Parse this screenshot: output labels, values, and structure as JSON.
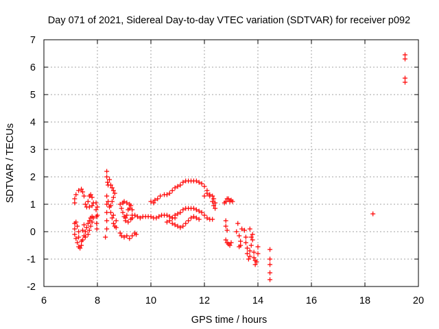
{
  "chart_data": {
    "type": "scatter",
    "title": "Day 071 of 2021, Sidereal Day-to-day VTEC variation (SDTVAR) for receiver p092",
    "xlabel": "GPS time / hours",
    "ylabel": "SDTVAR / TECUs",
    "xlim": [
      6,
      20
    ],
    "ylim": [
      -2,
      7
    ],
    "xticks": [
      "6",
      "8",
      "10",
      "12",
      "14",
      "16",
      "18",
      "20"
    ],
    "yticks": [
      "-2",
      "-1",
      "0",
      "1",
      "2",
      "3",
      "4",
      "5",
      "6",
      "7"
    ],
    "grid": true,
    "marker": "plus",
    "color": "#ff0000",
    "series": [
      {
        "name": "SDTVAR",
        "points": [
          [
            7.15,
            1.05
          ],
          [
            7.15,
            1.2
          ],
          [
            7.2,
            1.35
          ],
          [
            7.3,
            1.5
          ],
          [
            7.4,
            1.55
          ],
          [
            7.45,
            1.45
          ],
          [
            7.5,
            1.3
          ],
          [
            7.55,
            1.0
          ],
          [
            7.6,
            0.9
          ],
          [
            7.65,
            1.1
          ],
          [
            7.7,
            1.3
          ],
          [
            7.75,
            1.35
          ],
          [
            7.8,
            1.25
          ],
          [
            7.85,
            1.05
          ],
          [
            7.8,
            0.95
          ],
          [
            7.7,
            0.9
          ],
          [
            7.15,
            0.3
          ],
          [
            7.15,
            0.1
          ],
          [
            7.15,
            -0.1
          ],
          [
            7.2,
            -0.25
          ],
          [
            7.25,
            -0.4
          ],
          [
            7.3,
            -0.55
          ],
          [
            7.35,
            -0.6
          ],
          [
            7.4,
            -0.5
          ],
          [
            7.45,
            -0.3
          ],
          [
            7.5,
            -0.15
          ],
          [
            7.55,
            0.0
          ],
          [
            7.6,
            0.15
          ],
          [
            7.65,
            0.3
          ],
          [
            7.7,
            0.4
          ],
          [
            7.75,
            0.5
          ],
          [
            7.8,
            0.55
          ],
          [
            7.85,
            0.5
          ],
          [
            7.8,
            0.35
          ],
          [
            7.75,
            0.2
          ],
          [
            7.7,
            0.05
          ],
          [
            7.65,
            -0.1
          ],
          [
            7.55,
            -0.2
          ],
          [
            7.2,
            0.35
          ],
          [
            7.25,
            0.2
          ],
          [
            7.3,
            0.0
          ],
          [
            7.3,
            -0.2
          ],
          [
            7.4,
            -0.35
          ],
          [
            7.45,
            0.05
          ],
          [
            7.5,
            0.25
          ],
          [
            7.95,
            1.05
          ],
          [
            7.95,
            0.8
          ],
          [
            7.97,
            0.55
          ],
          [
            7.97,
            0.3
          ],
          [
            7.98,
            0.1
          ],
          [
            8.0,
            0.9
          ],
          [
            8.0,
            0.6
          ],
          [
            8.3,
            -0.2
          ],
          [
            8.35,
            0.1
          ],
          [
            8.35,
            0.4
          ],
          [
            8.35,
            0.7
          ],
          [
            8.35,
            1.0
          ],
          [
            8.35,
            1.3
          ],
          [
            8.35,
            2.0
          ],
          [
            8.35,
            2.2
          ],
          [
            8.38,
            1.8
          ],
          [
            8.4,
            1.7
          ],
          [
            8.45,
            1.9
          ],
          [
            8.5,
            1.7
          ],
          [
            8.55,
            1.6
          ],
          [
            8.6,
            1.5
          ],
          [
            8.65,
            1.4
          ],
          [
            8.6,
            1.25
          ],
          [
            8.55,
            1.1
          ],
          [
            8.5,
            0.95
          ],
          [
            8.4,
            1.1
          ],
          [
            8.45,
            0.9
          ],
          [
            8.5,
            0.7
          ],
          [
            8.55,
            0.5
          ],
          [
            8.6,
            0.3
          ],
          [
            8.65,
            0.2
          ],
          [
            8.7,
            0.15
          ],
          [
            8.6,
            0.6
          ],
          [
            8.7,
            0.4
          ],
          [
            8.85,
            1.0
          ],
          [
            8.9,
            0.85
          ],
          [
            8.95,
            0.7
          ],
          [
            9.0,
            0.55
          ],
          [
            9.05,
            0.4
          ],
          [
            9.1,
            0.6
          ],
          [
            9.15,
            0.8
          ],
          [
            9.2,
            1.0
          ],
          [
            9.25,
            0.95
          ],
          [
            9.3,
            0.8
          ],
          [
            9.3,
            0.6
          ],
          [
            9.25,
            0.45
          ],
          [
            9.15,
            0.35
          ],
          [
            9.05,
            0.5
          ],
          [
            8.95,
            1.05
          ],
          [
            9.0,
            1.1
          ],
          [
            9.1,
            1.05
          ],
          [
            9.2,
            0.85
          ],
          [
            9.3,
            0.5
          ],
          [
            8.85,
            -0.05
          ],
          [
            8.9,
            -0.15
          ],
          [
            9.0,
            -0.2
          ],
          [
            9.1,
            -0.15
          ],
          [
            9.2,
            -0.25
          ],
          [
            9.3,
            -0.15
          ],
          [
            9.4,
            -0.05
          ],
          [
            9.45,
            -0.1
          ],
          [
            9.4,
            0.6
          ],
          [
            9.5,
            0.55
          ],
          [
            9.6,
            0.5
          ],
          [
            9.7,
            0.55
          ],
          [
            9.8,
            0.55
          ],
          [
            9.9,
            0.55
          ],
          [
            10.0,
            0.55
          ],
          [
            10.1,
            0.5
          ],
          [
            10.2,
            0.5
          ],
          [
            10.3,
            0.55
          ],
          [
            10.4,
            0.6
          ],
          [
            10.5,
            0.6
          ],
          [
            10.6,
            0.6
          ],
          [
            10.7,
            0.55
          ],
          [
            10.8,
            0.5
          ],
          [
            10.9,
            0.5
          ],
          [
            10.0,
            1.1
          ],
          [
            10.1,
            1.05
          ],
          [
            10.15,
            1.15
          ],
          [
            10.25,
            1.2
          ],
          [
            10.35,
            1.3
          ],
          [
            10.5,
            1.35
          ],
          [
            10.6,
            1.35
          ],
          [
            10.7,
            1.4
          ],
          [
            10.8,
            1.5
          ],
          [
            10.9,
            1.6
          ],
          [
            11.0,
            1.65
          ],
          [
            11.1,
            1.7
          ],
          [
            11.2,
            1.8
          ],
          [
            11.3,
            1.85
          ],
          [
            11.4,
            1.85
          ],
          [
            11.5,
            1.85
          ],
          [
            11.6,
            1.85
          ],
          [
            11.7,
            1.85
          ],
          [
            11.8,
            1.8
          ],
          [
            11.9,
            1.75
          ],
          [
            12.0,
            1.65
          ],
          [
            12.1,
            1.5
          ],
          [
            12.2,
            1.3
          ],
          [
            12.3,
            1.1
          ],
          [
            12.35,
            0.95
          ],
          [
            10.6,
            0.35
          ],
          [
            10.7,
            0.4
          ],
          [
            10.8,
            0.5
          ],
          [
            10.9,
            0.6
          ],
          [
            11.0,
            0.65
          ],
          [
            11.1,
            0.7
          ],
          [
            11.2,
            0.8
          ],
          [
            11.3,
            0.85
          ],
          [
            11.4,
            0.85
          ],
          [
            11.5,
            0.85
          ],
          [
            11.6,
            0.85
          ],
          [
            11.7,
            0.8
          ],
          [
            11.8,
            0.75
          ],
          [
            11.9,
            0.7
          ],
          [
            12.0,
            0.6
          ],
          [
            12.1,
            0.5
          ],
          [
            12.2,
            0.45
          ],
          [
            12.3,
            0.45
          ],
          [
            10.8,
            0.3
          ],
          [
            10.9,
            0.25
          ],
          [
            11.0,
            0.2
          ],
          [
            11.1,
            0.15
          ],
          [
            11.2,
            0.2
          ],
          [
            11.3,
            0.3
          ],
          [
            11.4,
            0.4
          ],
          [
            11.5,
            0.5
          ],
          [
            11.6,
            0.55
          ],
          [
            11.7,
            0.5
          ],
          [
            11.8,
            0.45
          ],
          [
            12.0,
            1.3
          ],
          [
            12.1,
            1.4
          ],
          [
            12.2,
            1.35
          ],
          [
            12.3,
            1.3
          ],
          [
            12.35,
            1.2
          ],
          [
            12.4,
            1.05
          ],
          [
            12.4,
            0.85
          ],
          [
            12.75,
            1.05
          ],
          [
            12.8,
            1.1
          ],
          [
            12.85,
            1.2
          ],
          [
            12.9,
            1.2
          ],
          [
            12.95,
            1.1
          ],
          [
            13.0,
            1.15
          ],
          [
            13.05,
            1.1
          ],
          [
            12.8,
            0.4
          ],
          [
            12.8,
            0.2
          ],
          [
            12.85,
            0.05
          ],
          [
            12.8,
            -0.3
          ],
          [
            12.85,
            -0.4
          ],
          [
            12.9,
            -0.45
          ],
          [
            12.95,
            -0.5
          ],
          [
            13.0,
            -0.4
          ],
          [
            13.2,
            0.0
          ],
          [
            13.25,
            0.3
          ],
          [
            13.3,
            -0.15
          ],
          [
            13.35,
            -0.35
          ],
          [
            13.35,
            -0.5
          ],
          [
            13.3,
            -0.55
          ],
          [
            13.4,
            0.1
          ],
          [
            13.5,
            0.05
          ],
          [
            13.55,
            -0.2
          ],
          [
            13.55,
            -0.4
          ],
          [
            13.6,
            -0.6
          ],
          [
            13.6,
            -0.8
          ],
          [
            13.65,
            -1.0
          ],
          [
            13.7,
            -0.9
          ],
          [
            13.7,
            -0.7
          ],
          [
            13.75,
            -0.5
          ],
          [
            13.8,
            -0.3
          ],
          [
            13.8,
            -0.1
          ],
          [
            13.85,
            -0.95
          ],
          [
            13.9,
            -1.05
          ],
          [
            13.9,
            -1.2
          ],
          [
            13.95,
            -1.1
          ],
          [
            14.0,
            -0.8
          ],
          [
            14.0,
            -0.55
          ],
          [
            13.7,
            0.1
          ],
          [
            13.75,
            -0.2
          ],
          [
            13.85,
            -0.75
          ],
          [
            14.45,
            -0.65
          ],
          [
            14.45,
            -1.0
          ],
          [
            14.45,
            -1.2
          ],
          [
            14.45,
            -1.5
          ],
          [
            14.45,
            -1.75
          ],
          [
            18.3,
            0.65
          ],
          [
            19.5,
            6.45
          ],
          [
            19.5,
            6.3
          ],
          [
            19.5,
            5.6
          ],
          [
            19.5,
            5.45
          ]
        ]
      }
    ]
  }
}
